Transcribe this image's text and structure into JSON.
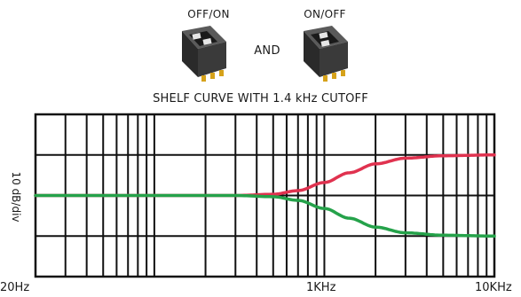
{
  "switches": {
    "left_label": "OFF/ON",
    "connector": "AND",
    "right_label": "ON/OFF"
  },
  "colors": {
    "boost": "#e0324f",
    "cut": "#25a24a",
    "grid": "#111111",
    "chip_body": "#3a3a3a",
    "chip_pins": "#d6a21a"
  },
  "chart_data": {
    "type": "line",
    "title": "SHELF CURVE WITH 1.4 kHz CUTOFF",
    "xlabel": "",
    "ylabel": "10 dB/div",
    "x_scale": "log",
    "xlim": [
      20,
      10000
    ],
    "x_ticklabels": [
      "20Hz",
      "1KHz",
      "10KHz"
    ],
    "y_divisions": 4,
    "grid": true,
    "series": [
      {
        "color": "#e0324f",
        "x": [
          20,
          100,
          300,
          500,
          700,
          1000,
          1400,
          2000,
          3000,
          5000,
          10000
        ],
        "y": [
          0,
          0,
          0,
          0.3,
          1.2,
          3.2,
          5.6,
          7.8,
          9.2,
          9.8,
          10
        ]
      },
      {
        "color": "#25a24a",
        "x": [
          20,
          100,
          300,
          500,
          700,
          1000,
          1400,
          2000,
          3000,
          5000,
          10000
        ],
        "y": [
          0,
          0,
          0,
          -0.3,
          -1.2,
          -3.2,
          -5.6,
          -7.8,
          -9.2,
          -9.8,
          -10
        ]
      }
    ]
  }
}
